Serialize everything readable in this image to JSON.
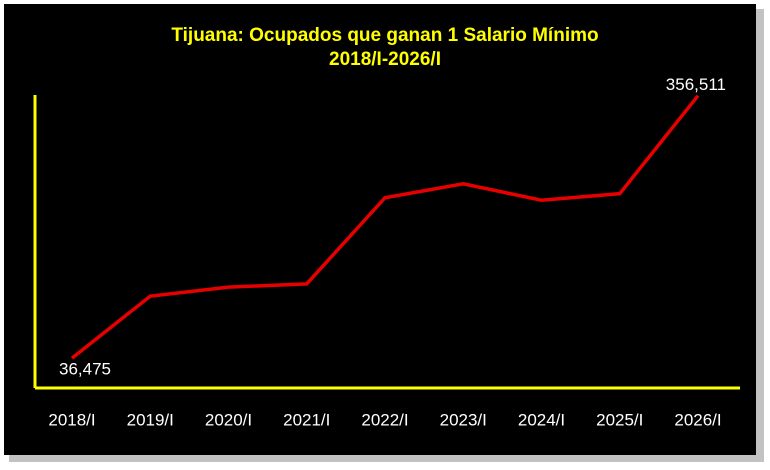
{
  "chart_data": {
    "type": "line",
    "title": "Tijuana: Ocupados que ganan 1 Salario Mínimo",
    "subtitle": "2018/I-2026/I",
    "categories": [
      "2018/I",
      "2019/I",
      "2020/I",
      "2021/I",
      "2022/I",
      "2023/I",
      "2024/I",
      "2025/I",
      "2026/I"
    ],
    "series": [
      {
        "color": "#e60000",
        "values": [
          36475,
          112000,
          123000,
          127000,
          232000,
          249000,
          229000,
          237000,
          356511
        ],
        "value_labels": [
          "36,475",
          null,
          null,
          null,
          null,
          null,
          null,
          null,
          "356,511"
        ]
      }
    ],
    "ylim": [
      0,
      400000
    ],
    "axis_color": "#ffff00"
  }
}
